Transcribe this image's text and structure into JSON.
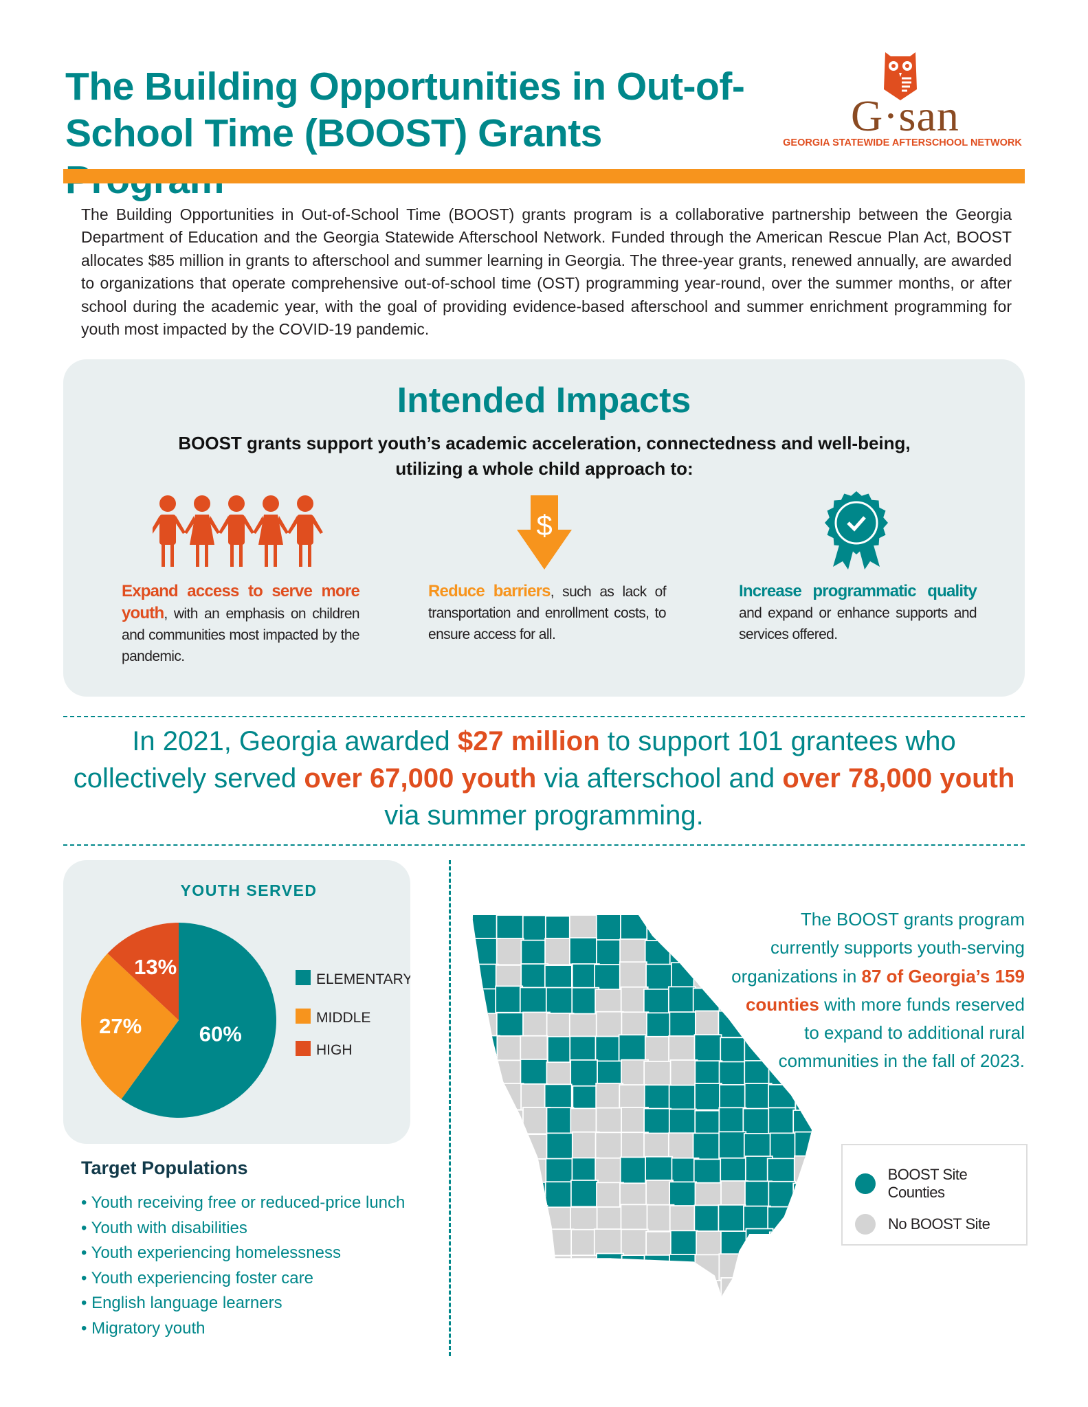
{
  "header": {
    "title": "The Building Opportunities in Out-of-School Time (BOOST) Grants Program",
    "logo": {
      "wordmark": "G·san",
      "tagline": "GEORGIA STATEWIDE AFTERSCHOOL NETWORK"
    }
  },
  "intro": "The Building Opportunities in Out-of-School Time (BOOST) grants program is a collaborative partnership between the Georgia Department of Education and the Georgia Statewide Afterschool Network. Funded through the American Rescue Plan Act, BOOST allocates $85 million in grants to afterschool and summer learning in Georgia. The three-year grants, renewed annually, are awarded to organizations that operate comprehensive out-of-school time (OST) programming year-round, over the summer months, or after school during the academic year, with the goal of providing evidence-based afterschool and summer enrichment programming for youth most impacted by the COVID-19 pandemic.",
  "impacts": {
    "title": "Intended Impacts",
    "subtitle": "BOOST grants support youth’s academic acceleration, connectedness and well-being, utilizing a whole child approach to:",
    "items": [
      {
        "icon": "people-holding-hands-icon",
        "lead": "Expand access to serve more youth",
        "rest": ", with an emphasis on children and communities most impacted by the pandemic.",
        "color": "#e04e1f"
      },
      {
        "icon": "dollar-down-arrow-icon",
        "lead": "Reduce barriers",
        "rest": ", such as lack of transportation and enrollment costs, to ensure access for all.",
        "color": "#f7941d"
      },
      {
        "icon": "award-ribbon-check-icon",
        "lead": "Increase programmatic quality",
        "rest": " and expand or enhance supports and services offered.",
        "color": "#00878a"
      }
    ]
  },
  "statement": [
    {
      "t": "In 2021, Georgia awarded ",
      "hi": false
    },
    {
      "t": "$27 million",
      "hi": true
    },
    {
      "t": " to support 101 grantees who collectively served ",
      "hi": false
    },
    {
      "t": "over 67,000 youth",
      "hi": true
    },
    {
      "t": " via afterschool and ",
      "hi": false
    },
    {
      "t": "over 78,000 youth",
      "hi": true
    },
    {
      "t": " via summer programming.",
      "hi": false
    }
  ],
  "chart_data": {
    "type": "pie",
    "title": "YOUTH SERVED",
    "categories": [
      "ELEMENTARY",
      "MIDDLE",
      "HIGH"
    ],
    "values": [
      60,
      27,
      13
    ],
    "labels": [
      "60%",
      "27%",
      "13%"
    ],
    "colors": [
      "#00878a",
      "#f7941d",
      "#e04e1f"
    ],
    "legend": "right"
  },
  "target_populations": {
    "title": "Target Populations",
    "items": [
      "Youth receiving free or reduced-price lunch",
      "Youth with disabilities",
      "Youth experiencing homelessness",
      "Youth experiencing foster care",
      "English language learners",
      "Migratory youth"
    ]
  },
  "map": {
    "text": [
      {
        "t": "The BOOST grants program currently supports youth-serving organizations in ",
        "hi": false
      },
      {
        "t": "87 of Georgia’s 159 counties",
        "hi": true
      },
      {
        "t": " with more funds reserved to expand to additional rural communities in the fall of 2023.",
        "hi": false
      }
    ],
    "legend": [
      {
        "label": "BOOST Site Counties",
        "color": "#00878a"
      },
      {
        "label": "No BOOST Site",
        "color": "#d4d4d4"
      }
    ]
  },
  "colors": {
    "teal": "#00878a",
    "orange": "#f7941d",
    "red": "#e04e1f",
    "panel": "#e9eff0"
  }
}
